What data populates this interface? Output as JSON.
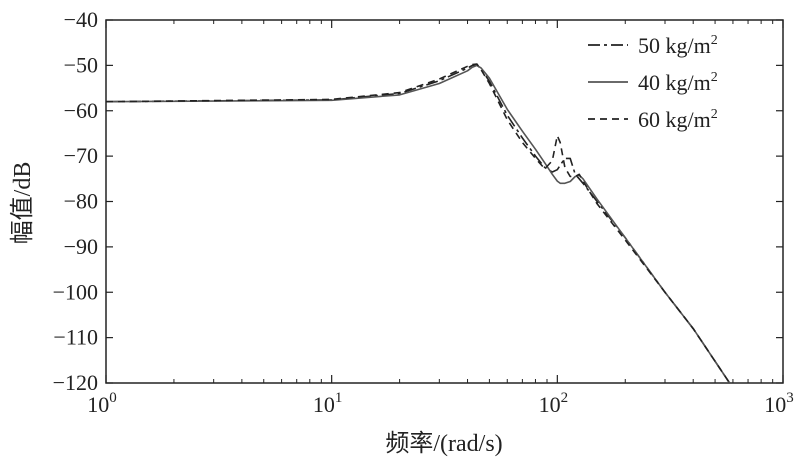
{
  "chart_data": {
    "type": "line",
    "title": "",
    "xlabel": "频率/(rad/s)",
    "ylabel": "幅值/dB",
    "xscale": "log",
    "xlim": [
      1,
      1000
    ],
    "ylim": [
      -120,
      -40
    ],
    "x_ticks": [
      {
        "value": 1,
        "base": "10",
        "exp": "0"
      },
      {
        "value": 10,
        "base": "10",
        "exp": "1"
      },
      {
        "value": 100,
        "base": "10",
        "exp": "2"
      },
      {
        "value": 1000,
        "base": "10",
        "exp": "3"
      }
    ],
    "y_ticks": [
      -40,
      -50,
      -60,
      -70,
      -80,
      -90,
      -100,
      -110,
      -120
    ],
    "grid": false,
    "legend_position": "top-right",
    "series": [
      {
        "name": "50 kg/m2",
        "label_main": "50 kg/m",
        "label_sup": "2",
        "style": "dashdot",
        "x": [
          1,
          10,
          20,
          30,
          40,
          42,
          44,
          46,
          50,
          60,
          70,
          80,
          88,
          95,
          100,
          103,
          108,
          114,
          120,
          125,
          130,
          150,
          200,
          300,
          400,
          580
        ],
        "y": [
          -58,
          -57.6,
          -56.2,
          -53.4,
          -50.6,
          -50,
          -49.9,
          -50.8,
          -53.5,
          -61,
          -66,
          -70,
          -72.5,
          -73.5,
          -73,
          -72,
          -70.5,
          -70.5,
          -74,
          -75,
          -76,
          -80,
          -88,
          -100,
          -108,
          -120
        ]
      },
      {
        "name": "40 kg/m2",
        "label_main": "40 kg/m",
        "label_sup": "2",
        "style": "solid",
        "x": [
          1,
          10,
          20,
          30,
          40,
          42,
          44,
          46,
          50,
          60,
          70,
          80,
          88,
          95,
          100,
          103,
          108,
          114,
          120,
          125,
          130,
          150,
          200,
          300,
          400,
          580
        ],
        "y": [
          -58,
          -57.7,
          -56.5,
          -54,
          -51.2,
          -50.4,
          -50,
          -50.6,
          -52.8,
          -59.7,
          -64.5,
          -68.5,
          -71.5,
          -74,
          -75.5,
          -76,
          -76,
          -75.6,
          -74.5,
          -74.2,
          -75,
          -79.5,
          -88,
          -100,
          -108,
          -120
        ]
      },
      {
        "name": "60 kg/m2",
        "label_main": "60 kg/m",
        "label_sup": "2",
        "style": "dashed",
        "x": [
          1,
          10,
          20,
          30,
          40,
          42,
          44,
          46,
          50,
          60,
          70,
          80,
          88,
          95,
          100,
          103,
          108,
          114,
          120,
          125,
          130,
          150,
          200,
          300,
          400,
          580
        ],
        "y": [
          -58,
          -57.5,
          -56,
          -53,
          -50.2,
          -49.8,
          -49.7,
          -51,
          -54,
          -62,
          -67,
          -70.5,
          -72.8,
          -71,
          -65.5,
          -67,
          -72.5,
          -74.5,
          -74.5,
          -74,
          -75.5,
          -80.5,
          -88.5,
          -100,
          -108,
          -120
        ]
      }
    ]
  }
}
